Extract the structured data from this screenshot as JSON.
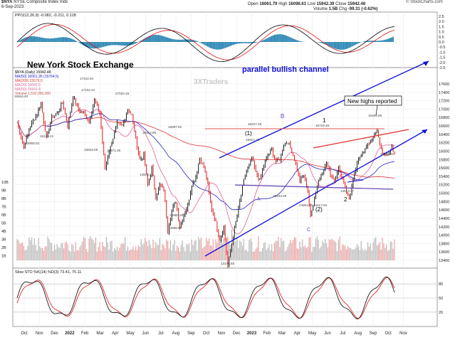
{
  "header": {
    "symbol": "$NYA",
    "name": "NYSE Composite Index",
    "exchange": "Indx",
    "date": "6-Sep-2023",
    "open_label": "Open",
    "open": "16061.79",
    "high_label": "High",
    "high": "16098.61",
    "low_label": "Low",
    "low": "15942.39",
    "close_label": "Close",
    "close": "15942.48",
    "volume_label": "Volume",
    "volume": "1.5B",
    "chg_label": "Chg",
    "chg": "-99.31 (-0.62%)",
    "copyright": "© StockCharts.com",
    "watermark": "3XTraders"
  },
  "ppo_panel": {
    "legend": "PPO(12,26,9) -0.082, -0.211, 0.128",
    "line_color": "#000000",
    "signal_color": "#e01010",
    "hist_color": "#1f7fb0",
    "ticks": [
      "2.5",
      "2.0",
      "1.5",
      "1.0",
      "0.5",
      "0.0",
      "-0.5",
      "-1.0",
      "-1.5",
      "-2.0",
      "-2.5"
    ]
  },
  "price_panel": {
    "legend": [
      {
        "text": "$NYA (Daily) 15942.48",
        "color": "#000000"
      },
      {
        "text": "MA(50) 16061.35 (15764.5)",
        "color": "#2020c0"
      },
      {
        "text": "MA(200) 15575.0",
        "color": "#e03030"
      },
      {
        "text": "MA(20) 16042.6",
        "color": "#e060a0"
      },
      {
        "text": "MA(50) 15641.4",
        "color": "#e060a0"
      },
      {
        "text": "Volume 1,532,050,000",
        "color": "#c05050"
      }
    ],
    "price_ticks": [
      "17600",
      "17400",
      "17200",
      "17000",
      "16800",
      "16600",
      "16400",
      "16200",
      "16000",
      "15800",
      "15600",
      "15400",
      "15200",
      "15000",
      "14800",
      "14600",
      "14400",
      "14200",
      "14000",
      "13800",
      "13600",
      "13400"
    ],
    "volume_ticks": [
      "10B",
      "9B",
      "8B",
      "7B",
      "6B",
      "5B",
      "4B",
      "3B",
      "2B",
      "1B"
    ],
    "annotations": {
      "title": "New York Stock Exchange",
      "channel": "parallel bullish channel",
      "new_highs": "New highs reported",
      "wave_B": "B",
      "wave_A": "A",
      "wave_C": "C",
      "wave_1p": "(1)",
      "wave_2p": "(2)",
      "wave_1": "1",
      "wave_2": "2"
    },
    "point_labels": [
      "15944.40",
      "15905.02",
      "17442.54",
      "17134.22",
      "17034.16",
      "16133.21",
      "15818.09",
      "15571.35",
      "16012.86",
      "14805.15",
      "14960.26",
      "13698.85",
      "15897.62",
      "15814.10",
      "16227.28",
      "15933.29",
      "15718.45",
      "14861.71",
      "14417.92",
      "14613.37",
      "16484.85",
      "15920.42",
      "13276.65"
    ],
    "colors": {
      "price_up": "#000000",
      "price_down": "#e00000",
      "channel": "#1010e0",
      "resistance": "#e03030",
      "wave_label": "#7040c0",
      "title": "#000000",
      "channel_text": "#1010e0"
    }
  },
  "sto_panel": {
    "legend": "Slow STO %K(14) %D(3) 73.41, 75.11",
    "ticks": [
      "80",
      "50",
      "20"
    ],
    "k_color": "#000000",
    "d_color": "#e01010"
  },
  "x_axis": {
    "labels": [
      "Oct",
      "Nov",
      "Dec",
      "2022",
      "Feb",
      "Mar",
      "Apr",
      "May",
      "Jun",
      "Jul",
      "Aug",
      "Sep",
      "Oct",
      "Nov",
      "Dec",
      "2023",
      "Feb",
      "Mar",
      "Apr",
      "May",
      "Jun",
      "Jul",
      "Aug",
      "Sep",
      "Oct",
      "Nov"
    ]
  },
  "chart_data": {
    "type": "line",
    "title": "$NYA NYSE Composite Index",
    "x_labels": [
      "Oct 2021",
      "Nov",
      "Dec",
      "Jan 2022",
      "Feb",
      "Mar",
      "Apr",
      "May",
      "Jun",
      "Jul",
      "Aug",
      "Sep",
      "Oct",
      "Nov",
      "Dec",
      "Jan 2023",
      "Feb",
      "Mar",
      "Apr",
      "May",
      "Jun",
      "Jul",
      "Aug",
      "Sep 2023"
    ],
    "ylim": [
      13400,
      17600
    ],
    "series": [
      {
        "name": "$NYA",
        "values": [
          [
            0,
            16700
          ],
          [
            5,
            16100
          ],
          [
            10,
            16600
          ],
          [
            15,
            16900
          ],
          [
            18,
            17130
          ],
          [
            22,
            16300
          ],
          [
            26,
            16800
          ],
          [
            30,
            16900
          ],
          [
            34,
            17150
          ],
          [
            38,
            16600
          ],
          [
            42,
            17300
          ],
          [
            46,
            17000
          ],
          [
            50,
            16900
          ],
          [
            54,
            16700
          ],
          [
            58,
            17200
          ],
          [
            62,
            16900
          ],
          [
            64,
            16200
          ],
          [
            66,
            15570
          ],
          [
            68,
            15900
          ],
          [
            71,
            16200
          ],
          [
            75,
            16650
          ],
          [
            79,
            16600
          ],
          [
            83,
            17000
          ],
          [
            86,
            16850
          ],
          [
            89,
            16300
          ],
          [
            92,
            15800
          ],
          [
            95,
            15900
          ],
          [
            98,
            15200
          ],
          [
            101,
            15600
          ],
          [
            104,
            14900
          ],
          [
            107,
            15200
          ],
          [
            110,
            15100
          ],
          [
            113,
            14100
          ],
          [
            116,
            14600
          ],
          [
            119,
            14800
          ],
          [
            122,
            14200
          ],
          [
            125,
            14500
          ],
          [
            128,
            14700
          ],
          [
            131,
            15200
          ],
          [
            134,
            15400
          ],
          [
            137,
            15850
          ],
          [
            140,
            15600
          ],
          [
            143,
            15200
          ],
          [
            146,
            14600
          ],
          [
            149,
            14300
          ],
          [
            152,
            13900
          ],
          [
            155,
            14200
          ],
          [
            158,
            13276
          ],
          [
            161,
            13800
          ],
          [
            164,
            14300
          ],
          [
            167,
            14800
          ],
          [
            170,
            15300
          ],
          [
            173,
            15600
          ],
          [
            176,
            15820
          ],
          [
            179,
            15500
          ],
          [
            182,
            15300
          ],
          [
            185,
            15650
          ],
          [
            188,
            15900
          ],
          [
            191,
            16020
          ],
          [
            194,
            15750
          ],
          [
            197,
            15800
          ],
          [
            200,
            16150
          ],
          [
            203,
            16227
          ],
          [
            206,
            16000
          ],
          [
            209,
            15700
          ],
          [
            212,
            15300
          ],
          [
            215,
            15400
          ],
          [
            218,
            15050
          ],
          [
            220,
            14418
          ],
          [
            223,
            14900
          ],
          [
            226,
            15300
          ],
          [
            229,
            15500
          ],
          [
            232,
            15720
          ],
          [
            235,
            15450
          ],
          [
            238,
            15300
          ],
          [
            241,
            15600
          ],
          [
            244,
            15350
          ],
          [
            247,
            15050
          ],
          [
            249,
            14861
          ],
          [
            252,
            15300
          ],
          [
            255,
            15700
          ],
          [
            258,
            15950
          ],
          [
            261,
            16050
          ],
          [
            264,
            16200
          ],
          [
            267,
            16350
          ],
          [
            270,
            16484
          ],
          [
            272,
            16150
          ],
          [
            275,
            15900
          ],
          [
            278,
            15920
          ],
          [
            281,
            16100
          ],
          [
            283,
            15942
          ]
        ]
      }
    ]
  }
}
